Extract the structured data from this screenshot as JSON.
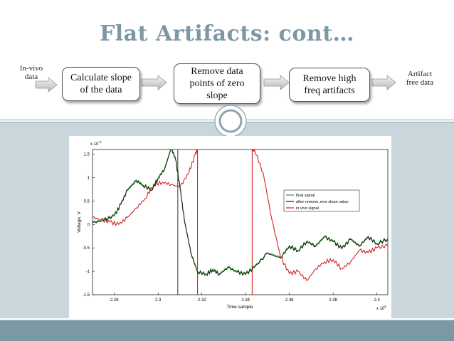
{
  "slide": {
    "title": "Flat Artifacts: cont…"
  },
  "flow": {
    "input_line1": "In-vivo",
    "input_line2": "data",
    "step1_line1": "Calculate slope",
    "step1_line2": "of the data",
    "step2_line1": "Remove data",
    "step2_line2": "points of zero",
    "step2_line3": "slope",
    "step3_line1": "Remove high",
    "step3_line2": "freq artifacts",
    "output_line1": "Artifact",
    "output_line2": "free data"
  },
  "chart_data": {
    "type": "line",
    "xlabel": "Time sample",
    "ylabel": "Voltage, V",
    "x_multiplier": "x 10",
    "x_multiplier_exp": "6",
    "y_multiplier": "x 10",
    "y_multiplier_exp": "-3",
    "xlim": [
      2.27,
      2.405
    ],
    "ylim": [
      -1.5,
      1.6
    ],
    "xticks": [
      "2.28",
      "2.3",
      "2.32",
      "2.34",
      "2.36",
      "2.38",
      "2.4"
    ],
    "yticks": [
      "1.5",
      "1",
      "0.5",
      "0",
      "-0.5",
      "-1",
      "-1.5"
    ],
    "legend_position": "upper-right",
    "series": [
      {
        "name": "final signal",
        "color": "#2aa02a",
        "x": [
          2.27,
          2.275,
          2.28,
          2.283,
          2.286,
          2.29,
          2.293,
          2.297,
          2.3,
          2.303,
          2.306,
          2.308,
          2.31,
          2.312,
          2.315,
          2.318,
          2.322,
          2.325,
          2.328,
          2.332,
          2.336,
          2.34,
          2.344,
          2.35,
          2.356,
          2.36,
          2.364,
          2.368,
          2.372,
          2.376,
          2.38,
          2.384,
          2.388,
          2.392,
          2.396,
          2.4,
          2.405
        ],
        "y": [
          0.05,
          0.1,
          0.2,
          0.45,
          0.75,
          0.95,
          0.85,
          0.75,
          1.0,
          1.2,
          1.65,
          1.4,
          0.8,
          0.1,
          -0.6,
          -1.0,
          -1.05,
          -0.95,
          -1.05,
          -0.9,
          -1.0,
          -1.05,
          -0.9,
          -0.6,
          -0.7,
          -0.45,
          -0.55,
          -0.35,
          -0.45,
          -0.25,
          -0.35,
          -0.5,
          -0.3,
          -0.45,
          -0.25,
          -0.4,
          -0.3
        ]
      },
      {
        "name": "after remove zero slope value",
        "color": "#111111",
        "x": [
          2.27,
          2.275,
          2.28,
          2.283,
          2.286,
          2.29,
          2.293,
          2.297,
          2.3,
          2.303,
          2.306,
          2.308,
          2.31,
          2.312,
          2.315,
          2.318,
          2.322,
          2.325,
          2.328,
          2.332,
          2.336,
          2.34,
          2.344,
          2.35,
          2.356,
          2.36,
          2.364,
          2.368,
          2.372,
          2.376,
          2.38,
          2.384,
          2.388,
          2.392,
          2.396,
          2.4,
          2.405
        ],
        "y": [
          0.03,
          0.08,
          0.18,
          0.43,
          0.73,
          0.93,
          0.83,
          0.73,
          0.98,
          1.18,
          1.63,
          1.38,
          0.78,
          0.08,
          -0.62,
          -1.02,
          -1.07,
          -0.97,
          -1.07,
          -0.92,
          -1.02,
          -1.07,
          -0.92,
          -0.62,
          -0.72,
          -0.47,
          -0.57,
          -0.37,
          -0.47,
          -0.27,
          -0.37,
          -0.52,
          -0.32,
          -0.47,
          -0.27,
          -0.42,
          -0.32
        ]
      },
      {
        "name": "in vivo signal",
        "color": "#d62222",
        "x": [
          2.27,
          2.274,
          2.278,
          2.282,
          2.286,
          2.29,
          2.294,
          2.298,
          2.302,
          2.306,
          2.31,
          2.314,
          2.317,
          2.318,
          2.318,
          2.343,
          2.343,
          2.344,
          2.348,
          2.352,
          2.356,
          2.36,
          2.364,
          2.368,
          2.372,
          2.376,
          2.38,
          2.384,
          2.388,
          2.392,
          2.396,
          2.4,
          2.405
        ],
        "y": [
          0.15,
          0.1,
          0.05,
          0.0,
          0.15,
          0.35,
          0.55,
          0.85,
          0.9,
          0.85,
          0.8,
          1.1,
          1.5,
          1.6,
          -1.6,
          -1.6,
          1.6,
          1.6,
          1.1,
          0.1,
          -0.7,
          -1.05,
          -1.0,
          -1.2,
          -0.95,
          -0.8,
          -0.75,
          -0.95,
          -0.8,
          -0.55,
          -0.6,
          -0.5,
          -0.45
        ]
      }
    ]
  }
}
